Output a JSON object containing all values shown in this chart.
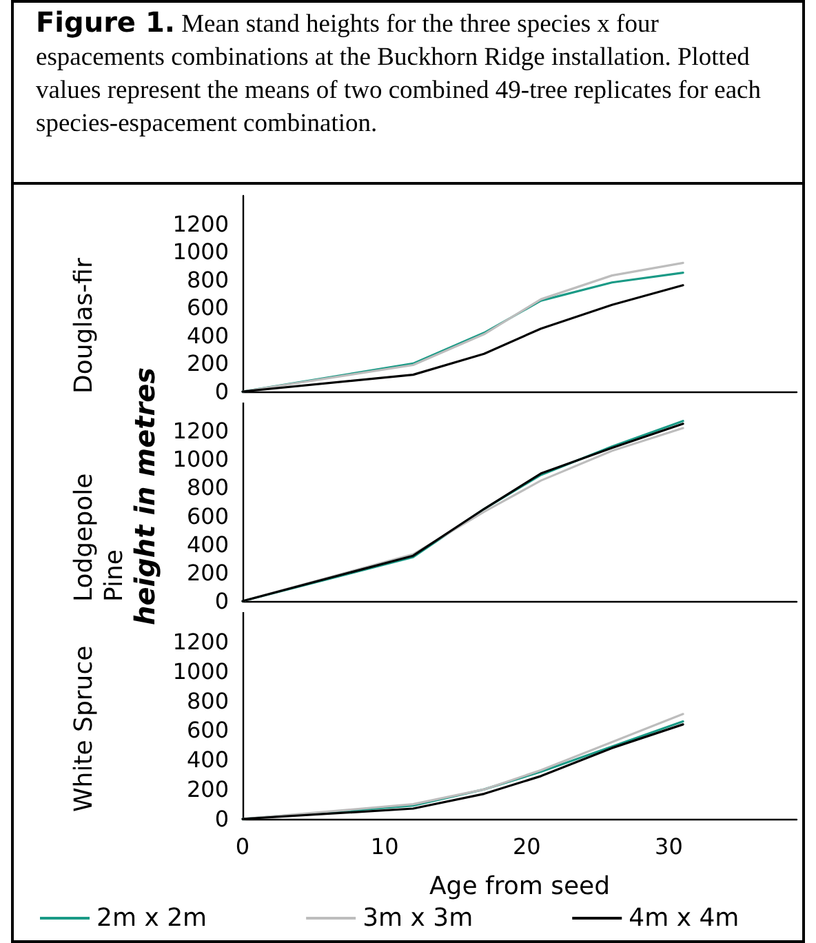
{
  "chart_data": [
    {
      "type": "line",
      "title": "Douglas-fir",
      "annotations": [
        "Figure 1. Mean stand heights for the three species x four espacements combinations at the Buckhorn Ridge installation. Plotted values represent the means of two combined 49-tree replicates for each species-espacement combination."
      ],
      "x": [
        0,
        12,
        17,
        21,
        26,
        31
      ],
      "xlim": [
        0,
        39
      ],
      "ylim": [
        0,
        1400
      ],
      "yticks": [
        0,
        200,
        400,
        600,
        800,
        1000,
        1200
      ],
      "tick_labels": "y",
      "grid": false,
      "line_style": "solid",
      "series": [
        {
          "color": "#1a9a86",
          "values": [
            0,
            200,
            420,
            650,
            780,
            850
          ]
        },
        {
          "color": "#bdbdbd",
          "values": [
            0,
            190,
            410,
            660,
            830,
            920
          ]
        },
        {
          "color": "#000000",
          "values": [
            0,
            120,
            270,
            450,
            620,
            760
          ]
        }
      ]
    },
    {
      "type": "line",
      "title": "Lodgepole Pine",
      "ylabel": "height in metres",
      "x": [
        0,
        12,
        17,
        21,
        26,
        31
      ],
      "xlim": [
        0,
        39
      ],
      "ylim": [
        0,
        1400
      ],
      "yticks": [
        0,
        200,
        400,
        600,
        800,
        1000,
        1200
      ],
      "tick_labels": "y",
      "grid": false,
      "line_style": "solid",
      "series": [
        {
          "color": "#1a9a86",
          "values": [
            0,
            310,
            650,
            890,
            1090,
            1270
          ]
        },
        {
          "color": "#bdbdbd",
          "values": [
            0,
            330,
            630,
            850,
            1060,
            1220
          ]
        },
        {
          "color": "#000000",
          "values": [
            0,
            320,
            650,
            900,
            1080,
            1250
          ]
        }
      ]
    },
    {
      "type": "line",
      "title": "White Spruce",
      "xlabel": "Age from seed",
      "x": [
        0,
        12,
        17,
        21,
        26,
        31
      ],
      "xlim": [
        0,
        39
      ],
      "xticks": [
        0,
        10,
        20,
        30
      ],
      "ylim": [
        0,
        1400
      ],
      "yticks": [
        0,
        200,
        400,
        600,
        800,
        1000,
        1200
      ],
      "grid": false,
      "legend": "bottom",
      "line_style": "solid",
      "series": [
        {
          "name": "2m x 2m",
          "color": "#1a9a86",
          "values": [
            0,
            90,
            200,
            320,
            490,
            660
          ]
        },
        {
          "name": "3m x 3m",
          "color": "#bdbdbd",
          "values": [
            0,
            100,
            200,
            330,
            520,
            710
          ]
        },
        {
          "name": "4m x 4m",
          "color": "#000000",
          "values": [
            0,
            70,
            170,
            290,
            480,
            640
          ]
        }
      ]
    }
  ]
}
